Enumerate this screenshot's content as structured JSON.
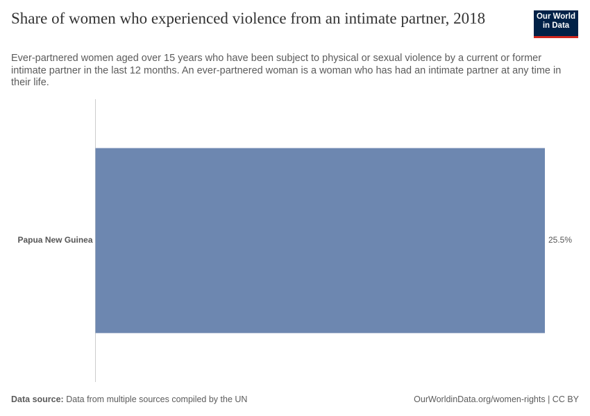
{
  "chart_data": {
    "type": "bar",
    "orientation": "horizontal",
    "title": "Share of women who experienced violence from an intimate partner, 2018",
    "subtitle": "Ever-partnered women aged over 15 years who have been subject to physical or sexual violence by a current or former intimate partner in the last 12 months. An ever-partnered woman is a woman who has had an intimate partner at any time in their life.",
    "categories": [
      "Papua New Guinea"
    ],
    "values": [
      25.5
    ],
    "value_labels": [
      "25.5%"
    ],
    "color": "#6d87b0"
  },
  "logo": "Our World in Data",
  "footer": {
    "source_label": "Data source:",
    "source": "Data from multiple sources compiled by the UN",
    "url": "OurWorldinData.org/women-rights | CC BY"
  }
}
